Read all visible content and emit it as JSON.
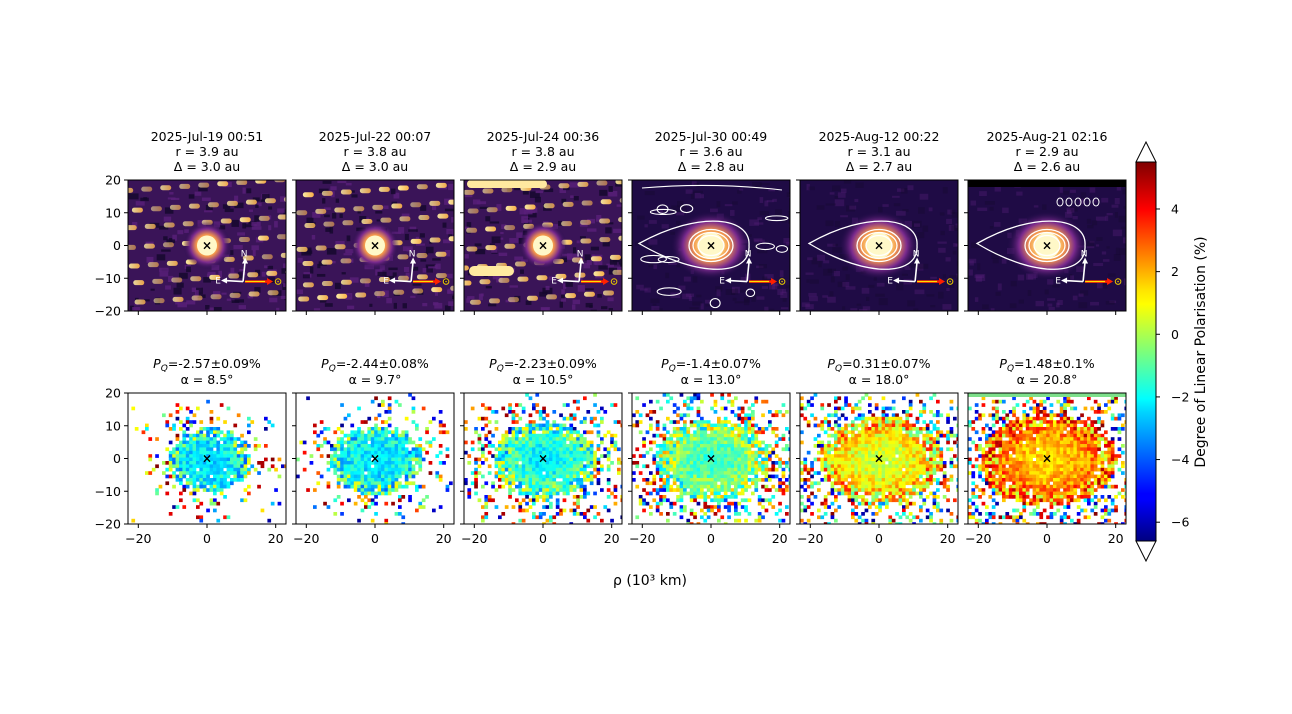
{
  "figure": {
    "xlabel": "ρ (10³ km)",
    "colorbar_label": "Degree of Linear Polarisation (%)"
  },
  "chart_data": [
    {
      "type": "heatmap",
      "name": "intensity-images",
      "x_range": [
        -23,
        23
      ],
      "y_range": [
        -20,
        20
      ],
      "y_ticks": [
        20,
        10,
        0,
        -10,
        -20
      ],
      "x_ticks": [
        -20,
        0,
        20
      ],
      "contours_shown_from_panel": 4,
      "compass_labels": {
        "north": "N",
        "east": "E"
      },
      "panels": [
        {
          "date": "2025-Jul-19 00:51",
          "r": "r = 3.9 au",
          "delta": "Δ = 3.0 au"
        },
        {
          "date": "2025-Jul-22 00:07",
          "r": "r = 3.8 au",
          "delta": "Δ = 3.0 au"
        },
        {
          "date": "2025-Jul-24 00:36",
          "r": "r = 3.8 au",
          "delta": "Δ = 2.9 au"
        },
        {
          "date": "2025-Jul-30 00:49",
          "r": "r = 3.6 au",
          "delta": "Δ = 2.8 au"
        },
        {
          "date": "2025-Aug-12 00:22",
          "r": "r = 3.1 au",
          "delta": "Δ = 2.7 au"
        },
        {
          "date": "2025-Aug-21 02:16",
          "r": "r = 2.9 au",
          "delta": "Δ = 2.6 au"
        }
      ]
    },
    {
      "type": "heatmap",
      "name": "polarisation-maps",
      "x_range": [
        -23,
        23
      ],
      "y_range": [
        -20,
        20
      ],
      "y_ticks": [
        20,
        10,
        0,
        -10,
        -20
      ],
      "x_ticks": [
        -20,
        0,
        20
      ],
      "x_tick_labels": [
        "−20",
        "0",
        "20"
      ],
      "y_tick_labels": [
        "20",
        "10",
        "0",
        "−10",
        "−20"
      ],
      "colorbar": {
        "min": -6.6,
        "max": 5.5,
        "ticks": [
          4,
          2,
          0,
          -2,
          -4,
          -6
        ],
        "tick_labels": [
          "4",
          "2",
          "0",
          "−2",
          "−4",
          "−6"
        ]
      },
      "panels": [
        {
          "pq_label": "P",
          "pq_sub": "Q",
          "pq_value": "=-2.57±0.09%",
          "pq": -2.57,
          "pq_err": 0.09,
          "alpha": "α = 8.5°"
        },
        {
          "pq_label": "P",
          "pq_sub": "Q",
          "pq_value": "=-2.44±0.08%",
          "pq": -2.44,
          "pq_err": 0.08,
          "alpha": "α = 9.7°"
        },
        {
          "pq_label": "P",
          "pq_sub": "Q",
          "pq_value": "=-2.23±0.09%",
          "pq": -2.23,
          "pq_err": 0.09,
          "alpha": "α = 10.5°"
        },
        {
          "pq_label": "P",
          "pq_sub": "Q",
          "pq_value": "=-1.4±0.07%",
          "pq": -1.4,
          "pq_err": 0.07,
          "alpha": "α = 13.0°"
        },
        {
          "pq_label": "P",
          "pq_sub": "Q",
          "pq_value": "=0.31±0.07%",
          "pq": 0.31,
          "pq_err": 0.07,
          "alpha": "α = 18.0°"
        },
        {
          "pq_label": "P",
          "pq_sub": "Q",
          "pq_value": "=1.48±0.1%",
          "pq": 1.48,
          "pq_err": 0.1,
          "alpha": "α = 20.8°"
        }
      ]
    }
  ]
}
